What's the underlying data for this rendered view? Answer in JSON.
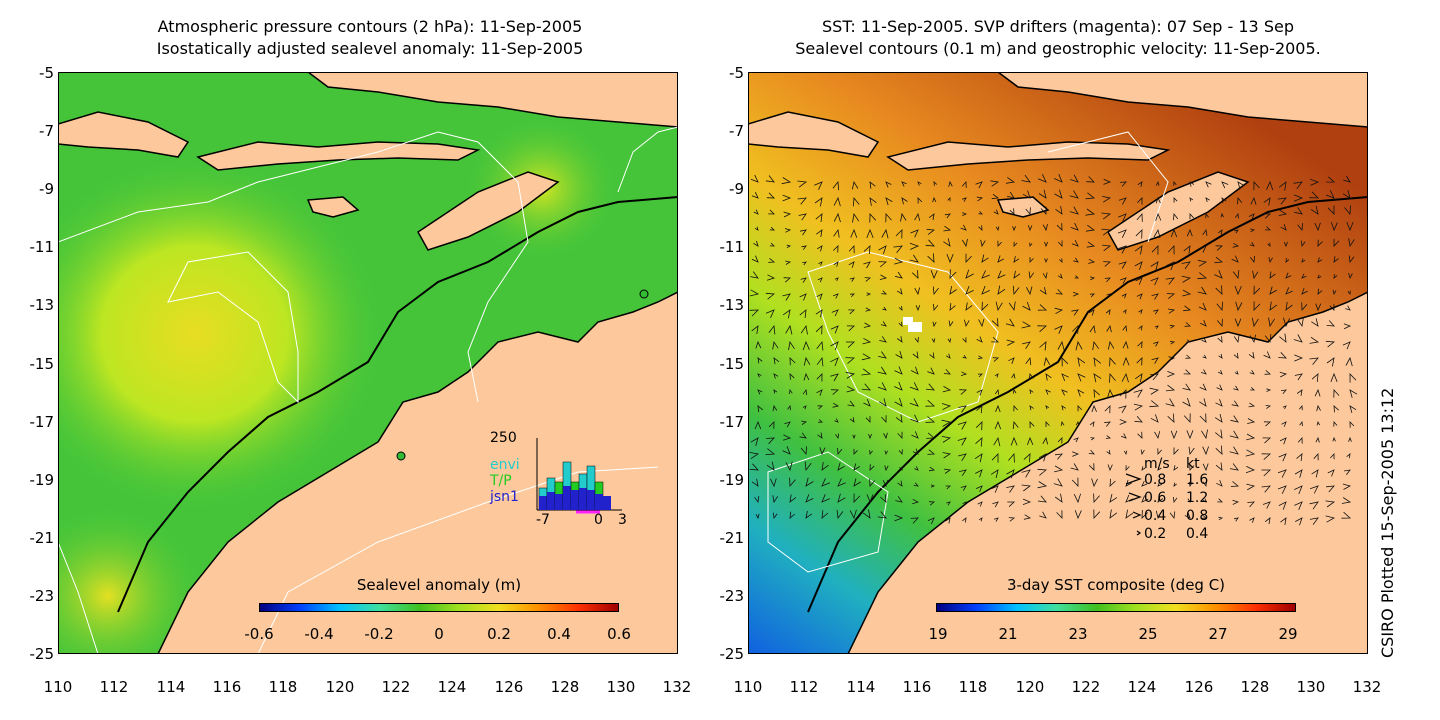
{
  "left_panel": {
    "title_line1": "Atmospheric pressure contours (2 hPa): 11-Sep-2005",
    "title_line2": "Isostatically adjusted sealevel anomaly: 11-Sep-2005",
    "y_ticks": [
      "-5",
      "-7",
      "-9",
      "-11",
      "-13",
      "-15",
      "-17",
      "-19",
      "-21",
      "-23",
      "-25"
    ],
    "x_ticks": [
      "110",
      "112",
      "114",
      "116",
      "118",
      "120",
      "122",
      "124",
      "126",
      "128",
      "130",
      "132"
    ],
    "colorbar_label": "Sealevel anomaly (m)",
    "colorbar_ticks": [
      "-0.6",
      "-0.4",
      "-0.2",
      "0",
      "0.2",
      "0.4",
      "0.6"
    ],
    "histogram": {
      "ymax_label": "250",
      "x_labels": [
        "-7",
        "0",
        "3"
      ],
      "legend": [
        {
          "name": "envi",
          "color": "#22cccc"
        },
        {
          "name": "T/P",
          "color": "#22cc22"
        },
        {
          "name": "jsn1",
          "color": "#2222cc"
        }
      ]
    }
  },
  "right_panel": {
    "title_line1": "SST: 11-Sep-2005. SVP drifters (magenta): 07 Sep - 13 Sep",
    "title_line2": "Sealevel contours (0.1 m) and geostrophic velocity: 11-Sep-2005.",
    "y_ticks": [
      "-5",
      "-7",
      "-9",
      "-11",
      "-13",
      "-15",
      "-17",
      "-19",
      "-21",
      "-23",
      "-25"
    ],
    "x_ticks": [
      "110",
      "112",
      "114",
      "116",
      "118",
      "120",
      "122",
      "124",
      "126",
      "128",
      "130",
      "132"
    ],
    "colorbar_label": "3-day SST composite (deg C)",
    "colorbar_ticks": [
      "19",
      "21",
      "23",
      "25",
      "27",
      "29"
    ],
    "velocity_legend": {
      "header_ms": "m/s",
      "header_kt": "kt",
      "rows": [
        {
          "ms": "0.8",
          "kt": "1.6"
        },
        {
          "ms": "0.6",
          "kt": "1.2"
        },
        {
          "ms": "0.4",
          "kt": "0.8"
        },
        {
          "ms": "0.2",
          "kt": "0.4"
        }
      ]
    }
  },
  "credit": "CSIRO Plotted 15-Sep-2005 13:12",
  "colors": {
    "land": "#fdc99c",
    "ocean_green": "#33bb33",
    "ocean_yellow": "#ccee22"
  }
}
